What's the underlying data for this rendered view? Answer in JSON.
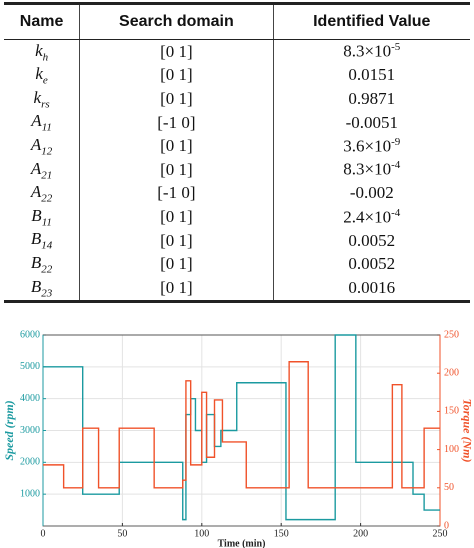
{
  "table": {
    "columns": [
      "Name",
      "Search domain",
      "Identified Value"
    ],
    "rows": [
      {
        "name": {
          "base": "k",
          "sub": "h"
        },
        "domain": "[0 1]",
        "value": {
          "base": "8.3×10",
          "sup": "-5"
        }
      },
      {
        "name": {
          "base": "k",
          "sub": "e"
        },
        "domain": "[0 1]",
        "value": "0.0151"
      },
      {
        "name": {
          "base": "k",
          "sub": "rs"
        },
        "domain": "[0 1]",
        "value": "0.9871"
      },
      {
        "name": {
          "base": "A",
          "sub": "11"
        },
        "domain": "[-1 0]",
        "value": "-0.0051"
      },
      {
        "name": {
          "base": "A",
          "sub": "12"
        },
        "domain": "[0 1]",
        "value": {
          "base": "3.6×10",
          "sup": "-9"
        }
      },
      {
        "name": {
          "base": "A",
          "sub": "21"
        },
        "domain": "[0 1]",
        "value": {
          "base": "8.3×10",
          "sup": "-4"
        }
      },
      {
        "name": {
          "base": "A",
          "sub": "22"
        },
        "domain": "[-1 0]",
        "value": "-0.002"
      },
      {
        "name": {
          "base": "B",
          "sub": "11"
        },
        "domain": "[0 1]",
        "value": {
          "base": "2.4×10",
          "sup": "-4"
        }
      },
      {
        "name": {
          "base": "B",
          "sub": "14"
        },
        "domain": "[0 1]",
        "value": "0.0052"
      },
      {
        "name": {
          "base": "B",
          "sub": "22"
        },
        "domain": "[0 1]",
        "value": "0.0052"
      },
      {
        "name": {
          "base": "B",
          "sub": "23"
        },
        "domain": "[0 1]",
        "value": "0.0016"
      }
    ]
  },
  "chart_data": {
    "type": "line",
    "xlabel": "Time (min)",
    "ylabel": "Speed (rpm)",
    "y2label": "Torque (Nm)",
    "xlim": [
      0,
      250
    ],
    "xticks": [
      0,
      50,
      100,
      150,
      200,
      250
    ],
    "ylim": [
      0,
      6000
    ],
    "yticks": [
      1000,
      2000,
      3000,
      4000,
      5000,
      6000
    ],
    "y2lim": [
      0,
      250
    ],
    "y2ticks": [
      0,
      50,
      100,
      150,
      200,
      250
    ],
    "grid": true,
    "series": [
      {
        "color": "#1b9aa0",
        "x": [
          0,
          25,
          25,
          48,
          48,
          88,
          88,
          90,
          90,
          93,
          93,
          96,
          96,
          100,
          100,
          103,
          103,
          108,
          108,
          112,
          112,
          122,
          122,
          153,
          153,
          184,
          184,
          197,
          197,
          233,
          233,
          240,
          240,
          250
        ],
        "values": [
          5000,
          5000,
          1000,
          1000,
          2000,
          2000,
          200,
          200,
          3500,
          3500,
          4000,
          4000,
          3000,
          3000,
          2000,
          2000,
          3500,
          3500,
          2500,
          2500,
          3000,
          3000,
          4500,
          4500,
          200,
          200,
          6000,
          6000,
          2000,
          2000,
          1000,
          1000,
          500,
          500
        ]
      },
      {
        "color": "#f0522a",
        "axis": "y2",
        "x": [
          0,
          13,
          13,
          25,
          25,
          35,
          35,
          48,
          48,
          70,
          70,
          88,
          88,
          90,
          90,
          93,
          93,
          100,
          100,
          103,
          103,
          108,
          108,
          113,
          113,
          128,
          128,
          155,
          155,
          167,
          167,
          220,
          220,
          226,
          226,
          240,
          240,
          250
        ],
        "values": [
          80,
          80,
          50,
          50,
          128,
          128,
          50,
          50,
          128,
          128,
          50,
          50,
          60,
          60,
          190,
          190,
          80,
          80,
          175,
          175,
          90,
          90,
          165,
          165,
          110,
          110,
          50,
          50,
          215,
          215,
          50,
          50,
          185,
          185,
          50,
          50,
          128,
          128
        ]
      }
    ]
  }
}
